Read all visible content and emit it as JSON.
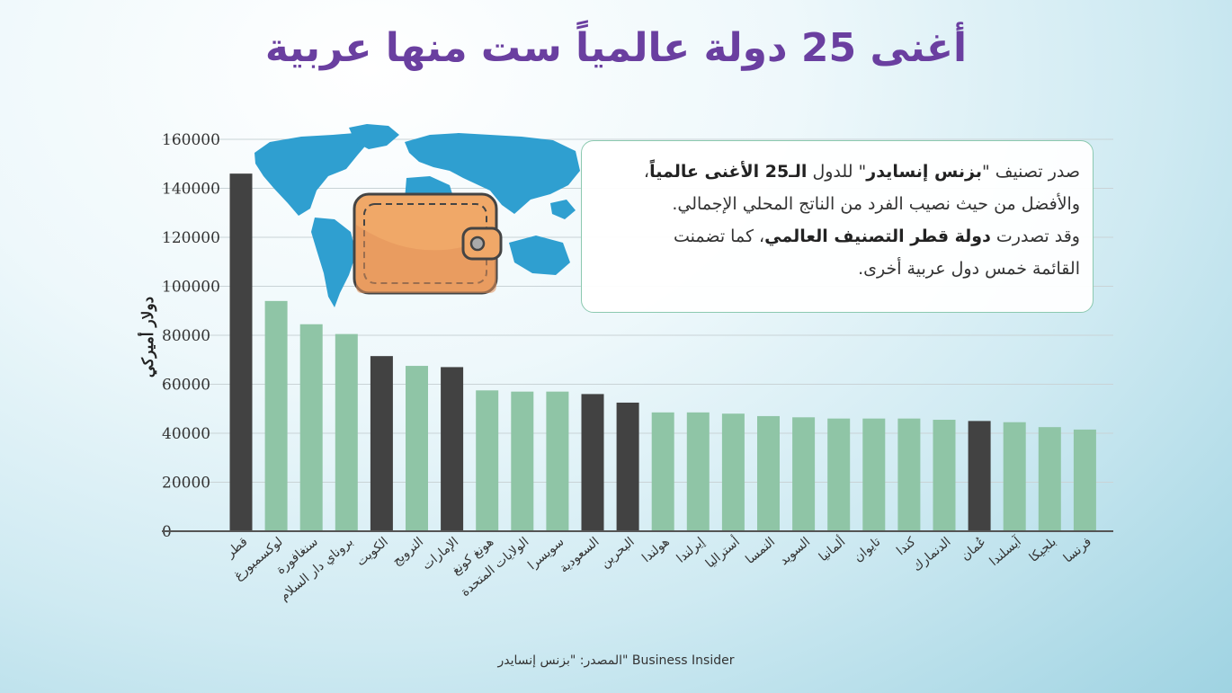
{
  "title": "أغنى 25 دولة عالمياً ست منها عربية",
  "callout": {
    "line1_a": "صدر تصنيف \"",
    "line1_b": "بزنس إنسايدر",
    "line1_c": "\" للدول ",
    "line1_d": "الـ25 الأغنى عالمياً",
    "line1_e": "،",
    "line2": "والأفضل من حيث نصيب الفرد من الناتج المحلي الإجمالي.",
    "line3_a": "وقد تصدرت ",
    "line3_b": "دولة قطر التصنيف العالمي",
    "line3_c": "، كما تضمنت",
    "line4": "القائمة خمس دول عربية أخرى."
  },
  "source": "المصدر: \"بزنس إنسايدر\" Business Insider",
  "colors": {
    "arab": "#424242",
    "other": "#8fc5a6",
    "title": "#6a3fa0",
    "map": "#2f9fd0",
    "wallet": "#f0a868"
  },
  "icons": [
    "world-map-icon",
    "wallet-icon"
  ],
  "chart_data": {
    "type": "bar",
    "ylabel": "دولار أميركي",
    "xlabel": "",
    "ylim": [
      0,
      160000
    ],
    "yticks": [
      0,
      20000,
      40000,
      60000,
      80000,
      100000,
      120000,
      140000,
      160000
    ],
    "grid": true,
    "categories": [
      "قطر",
      "لوكسمبورغ",
      "سنغافورة",
      "بروناي دار السلام",
      "الكويت",
      "النرويج",
      "الإمارات",
      "هونغ كونغ",
      "الولايات المتحدة",
      "سويسرا",
      "السعودية",
      "البحرين",
      "هولندا",
      "إيرلندا",
      "أستراليا",
      "النمسا",
      "السويد",
      "ألمانيا",
      "تايوان",
      "كندا",
      "الدنمارك",
      "عُمان",
      "آيسلندا",
      "بلجيكا",
      "فرنسا"
    ],
    "values": [
      146000,
      94000,
      84500,
      80500,
      71500,
      67500,
      67000,
      57500,
      57000,
      57000,
      56000,
      52500,
      48500,
      48500,
      48000,
      47000,
      46500,
      46000,
      46000,
      46000,
      45500,
      45000,
      44500,
      42500,
      41500
    ],
    "arab": [
      true,
      false,
      false,
      false,
      true,
      false,
      true,
      false,
      false,
      false,
      true,
      true,
      false,
      false,
      false,
      false,
      false,
      false,
      false,
      false,
      false,
      true,
      false,
      false,
      false
    ]
  }
}
